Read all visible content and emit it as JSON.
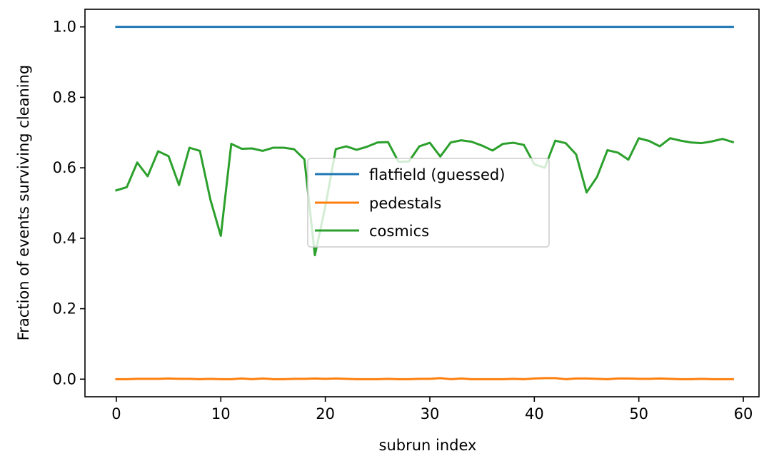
{
  "chart_data": {
    "type": "line",
    "title": "",
    "xlabel": "subrun index",
    "ylabel": "Fraction of events surviving cleaning",
    "xlim": [
      -3,
      61.5
    ],
    "ylim": [
      -0.05,
      1.05
    ],
    "xticks": [
      0,
      10,
      20,
      30,
      40,
      50,
      60
    ],
    "xtick_labels": [
      "0",
      "10",
      "20",
      "30",
      "40",
      "50",
      "60"
    ],
    "yticks": [
      0.0,
      0.2,
      0.4,
      0.6,
      0.8,
      1.0
    ],
    "ytick_labels": [
      "0.0",
      "0.2",
      "0.4",
      "0.6",
      "0.8",
      "1.0"
    ],
    "grid": false,
    "legend_position": "center",
    "x": [
      0,
      1,
      2,
      3,
      4,
      5,
      6,
      7,
      8,
      9,
      10,
      11,
      12,
      13,
      14,
      15,
      16,
      17,
      18,
      19,
      20,
      21,
      22,
      23,
      24,
      25,
      26,
      27,
      28,
      29,
      30,
      31,
      32,
      33,
      34,
      35,
      36,
      37,
      38,
      39,
      40,
      41,
      42,
      43,
      44,
      45,
      46,
      47,
      48,
      49,
      50,
      51,
      52,
      53,
      54,
      55,
      56,
      57,
      58,
      59
    ],
    "series": [
      {
        "name": "flatfield (guessed)",
        "color": "#1f77b4",
        "values": [
          1,
          1,
          1,
          1,
          1,
          1,
          1,
          1,
          1,
          1,
          1,
          1,
          1,
          1,
          1,
          1,
          1,
          1,
          1,
          1,
          1,
          1,
          1,
          1,
          1,
          1,
          1,
          1,
          1,
          1,
          1,
          1,
          1,
          1,
          1,
          1,
          1,
          1,
          1,
          1,
          1,
          1,
          1,
          1,
          1,
          1,
          1,
          1,
          1,
          1,
          1,
          1,
          1,
          1,
          1,
          1,
          1,
          1,
          1,
          1
        ]
      },
      {
        "name": "pedestals",
        "color": "#ff7f0e",
        "values": [
          0.0,
          0.0,
          0.001,
          0.001,
          0.001,
          0.002,
          0.001,
          0.001,
          0.0,
          0.001,
          0.0,
          0.0,
          0.002,
          0.0,
          0.002,
          0.0,
          0.0,
          0.001,
          0.001,
          0.002,
          0.001,
          0.002,
          0.001,
          0.0,
          0.0,
          0.0,
          0.001,
          0.0,
          0.0,
          0.001,
          0.001,
          0.003,
          0.0,
          0.002,
          0.0,
          0.0,
          0.0,
          0.0,
          0.001,
          0.0,
          0.002,
          0.003,
          0.003,
          0.0,
          0.002,
          0.002,
          0.001,
          0.0,
          0.002,
          0.002,
          0.001,
          0.001,
          0.002,
          0.001,
          0.0,
          0.0,
          0.001,
          0.0,
          0.0,
          0.0
        ]
      },
      {
        "name": "cosmics",
        "color": "#2ca02c",
        "values": [
          0.536,
          0.545,
          0.615,
          0.576,
          0.647,
          0.633,
          0.551,
          0.657,
          0.648,
          0.51,
          0.407,
          0.668,
          0.654,
          0.655,
          0.648,
          0.657,
          0.657,
          0.653,
          0.624,
          0.352,
          0.49,
          0.653,
          0.661,
          0.651,
          0.66,
          0.672,
          0.673,
          0.617,
          0.618,
          0.661,
          0.671,
          0.632,
          0.672,
          0.678,
          0.674,
          0.663,
          0.649,
          0.668,
          0.671,
          0.665,
          0.61,
          0.6,
          0.677,
          0.67,
          0.638,
          0.53,
          0.574,
          0.65,
          0.643,
          0.623,
          0.684,
          0.676,
          0.661,
          0.684,
          0.677,
          0.672,
          0.67,
          0.675,
          0.682,
          0.673
        ]
      }
    ]
  }
}
